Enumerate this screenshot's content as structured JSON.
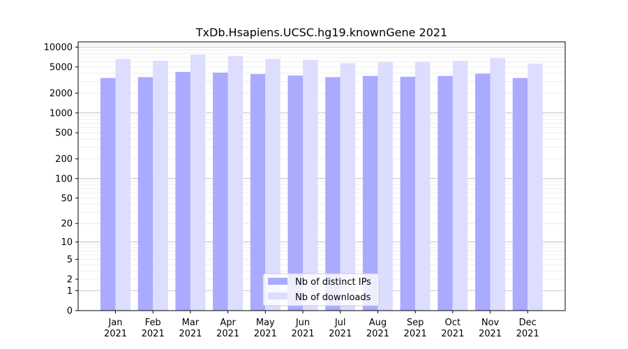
{
  "chart_data": {
    "type": "bar",
    "title": "TxDb.Hsapiens.UCSC.hg19.knownGene 2021",
    "xlabel": "",
    "ylabel": "",
    "y_scale": "log1p",
    "ylim": [
      0,
      12000
    ],
    "y_ticks": [
      0,
      1,
      2,
      5,
      10,
      20,
      50,
      100,
      200,
      500,
      1000,
      2000,
      5000,
      10000
    ],
    "y_tick_labels": [
      "0",
      "1",
      "2",
      "5",
      "10",
      "20",
      "50",
      "100",
      "200",
      "500",
      "1000",
      "2000",
      "5000",
      "10000"
    ],
    "categories": [
      "Jan\n2021",
      "Feb\n2021",
      "Mar\n2021",
      "Apr\n2021",
      "May\n2021",
      "Jun\n2021",
      "Jul\n2021",
      "Aug\n2021",
      "Sep\n2021",
      "Oct\n2021",
      "Nov\n2021",
      "Dec\n2021"
    ],
    "series": [
      {
        "name": "Nb of distinct IPs",
        "color": "#aaaaff",
        "values": [
          3400,
          3500,
          4200,
          4100,
          3900,
          3700,
          3500,
          3650,
          3550,
          3650,
          3950,
          3400
        ]
      },
      {
        "name": "Nb of downloads",
        "color": "#ddddff",
        "values": [
          6600,
          6200,
          7700,
          7300,
          6600,
          6400,
          5700,
          5900,
          5900,
          6200,
          6800,
          5600
        ]
      }
    ],
    "grid": true,
    "legend": "lower-center"
  }
}
